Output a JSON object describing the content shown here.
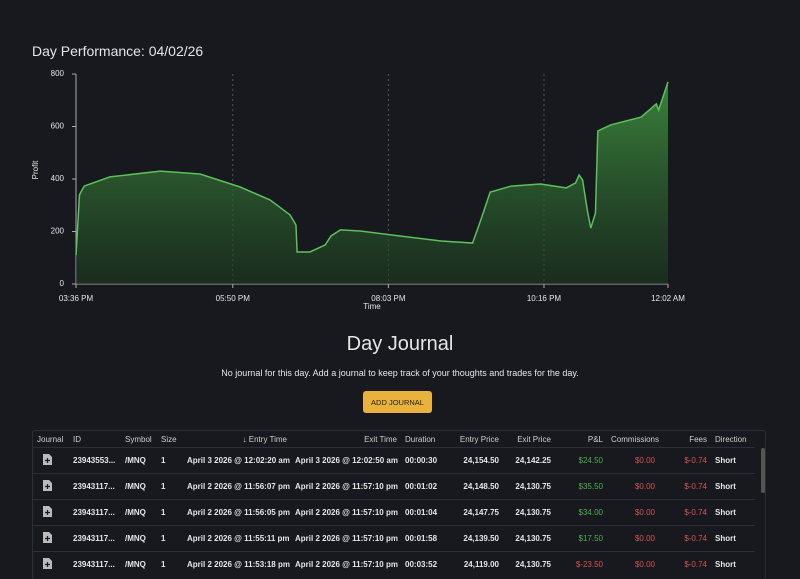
{
  "header": {
    "title": "Day Performance: 04/02/26"
  },
  "chart_data": {
    "type": "area",
    "y_label": "Profit",
    "x_label": "Time",
    "color": "#5cc05c",
    "grid": "x",
    "xlim": [
      0,
      506
    ],
    "ylim": [
      0,
      800
    ],
    "xticks": [
      {
        "value": 0,
        "label": "03:36 PM"
      },
      {
        "value": 134,
        "label": "05:50 PM"
      },
      {
        "value": 267,
        "label": "08:03 PM"
      },
      {
        "value": 400,
        "label": "10:16 PM"
      },
      {
        "value": 506,
        "label": "12:02 AM"
      }
    ],
    "yticks": [
      0,
      200,
      400,
      600,
      800
    ],
    "series": [
      {
        "x": [
          0,
          3,
          7,
          29,
          72,
          106,
          140,
          166,
          183,
          188,
          189,
          200,
          213,
          218,
          226,
          243,
          277,
          312,
          339,
          346,
          354,
          372,
          397,
          419,
          427,
          430,
          433,
          437,
          440,
          444,
          446,
          457,
          483,
          496,
          498,
          502,
          506
        ],
        "values": [
          110,
          340,
          373,
          408,
          430,
          419,
          370,
          320,
          263,
          225,
          122,
          122,
          149,
          183,
          206,
          202,
          183,
          164,
          156,
          244,
          350,
          373,
          381,
          366,
          385,
          415,
          396,
          282,
          213,
          270,
          583,
          606,
          636,
          686,
          663,
          716,
          770
        ]
      }
    ]
  },
  "journal": {
    "title": "Day Journal",
    "message": "No journal for this day. Add a journal to keep track of your thoughts and trades for the day.",
    "button": "ADD JOURNAL"
  },
  "table": {
    "columns": [
      "Journal",
      "ID",
      "Symbol",
      "Size",
      "Entry Time",
      "Exit Time",
      "Duration",
      "Entry Price",
      "Exit Price",
      "P&L",
      "Commissions",
      "Fees",
      "Direction"
    ],
    "rows": [
      [
        "23943553...",
        "/MNQ",
        "1",
        "April 3 2026 @ 12:02:20 am",
        "April 3 2026 @ 12:02:50 am",
        "00:00:30",
        "24,154.50",
        "24,142.25",
        "$24.50",
        "$0.00",
        "$-0.74",
        "Short"
      ],
      [
        "23943117...",
        "/MNQ",
        "1",
        "April 2 2026 @ 11:56:07 pm",
        "April 2 2026 @ 11:57:10 pm",
        "00:01:02",
        "24,148.50",
        "24,130.75",
        "$35.50",
        "$0.00",
        "$-0.74",
        "Short"
      ],
      [
        "23943117...",
        "/MNQ",
        "1",
        "April 2 2026 @ 11:56:05 pm",
        "April 2 2026 @ 11:57:10 pm",
        "00:01:04",
        "24,147.75",
        "24,130.75",
        "$34.00",
        "$0.00",
        "$-0.74",
        "Short"
      ],
      [
        "23943117...",
        "/MNQ",
        "1",
        "April 2 2026 @ 11:55:11 pm",
        "April 2 2026 @ 11:57:10 pm",
        "00:01:58",
        "24,139.50",
        "24,130.75",
        "$17.50",
        "$0.00",
        "$-0.74",
        "Short"
      ],
      [
        "23943117...",
        "/MNQ",
        "1",
        "April 2 2026 @ 11:53:18 pm",
        "April 2 2026 @ 11:57:10 pm",
        "00:03:52",
        "24,119.00",
        "24,130.75",
        "$-23.50",
        "$0.00",
        "$-0.74",
        "Short"
      ]
    ]
  }
}
